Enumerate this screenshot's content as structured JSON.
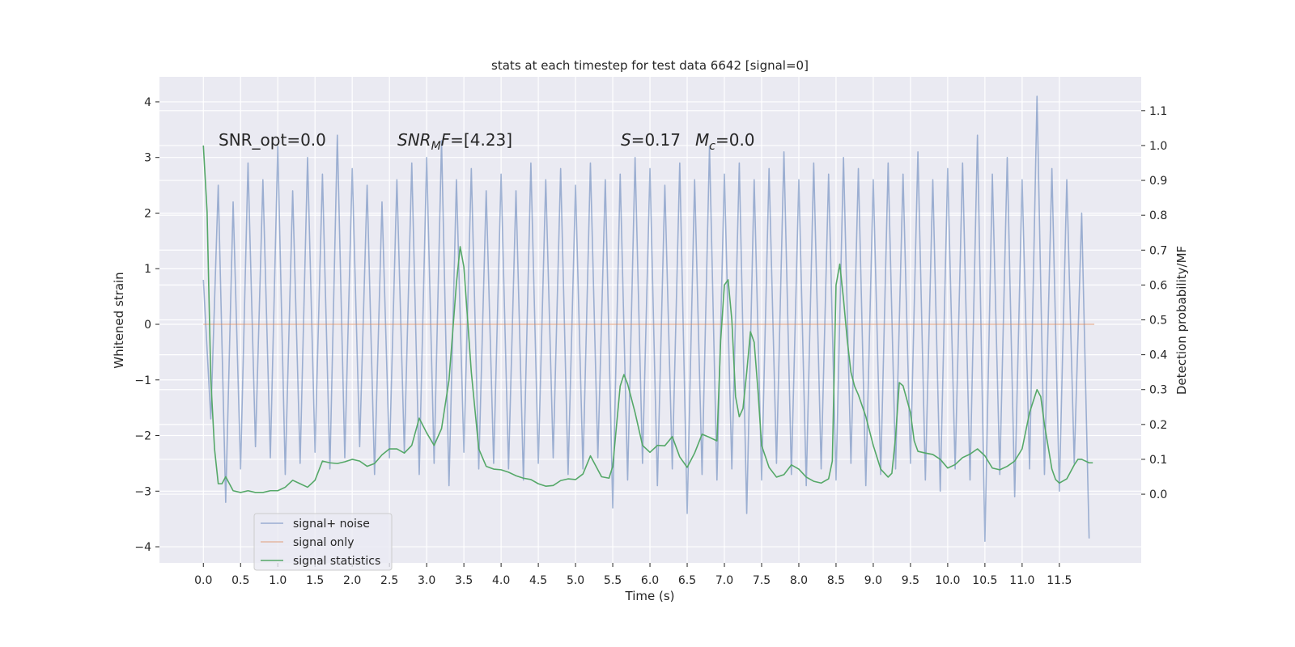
{
  "chart_data": {
    "type": "line",
    "title": "stats at each timestep for test data 6642 [signal=0]",
    "xlabel": "Time (s)",
    "ylabel": "Whitened strain",
    "y2label": "Detection probability/MF",
    "xlim": [
      -0.59,
      12.6
    ],
    "ylim": [
      -4.29,
      4.45
    ],
    "y2lim": [
      -0.197,
      1.197
    ],
    "xticks": [
      {
        "value": 0,
        "label": "0.0"
      },
      0.5,
      {
        "value": 1,
        "label": "1.0"
      },
      1.5,
      {
        "value": 2,
        "label": "2.0"
      },
      2.5,
      {
        "value": 3,
        "label": "3.0"
      },
      3.5,
      {
        "value": 4,
        "label": "4.0"
      },
      4.5,
      {
        "value": 5,
        "label": "5.0"
      },
      5.5,
      {
        "value": 6,
        "label": "6.0"
      },
      6.5,
      {
        "value": 7,
        "label": "7.0"
      },
      7.5,
      {
        "value": 8,
        "label": "8.0"
      },
      8.5,
      {
        "value": 9,
        "label": "9.0"
      },
      9.5,
      {
        "value": 10,
        "label": "10.0"
      },
      10.5,
      {
        "value": 11,
        "label": "11.0"
      },
      11.5
    ],
    "yticks": [
      {
        "value": -4,
        "label": "−4"
      },
      {
        "value": -3,
        "label": "−3"
      },
      {
        "value": -2,
        "label": "−2"
      },
      {
        "value": -1,
        "label": "−1"
      },
      0,
      1,
      2,
      3,
      4
    ],
    "y2ticks": [
      {
        "value": 0,
        "label": "0.0"
      },
      0.1,
      0.2,
      0.3,
      0.4,
      0.5,
      0.6,
      0.7,
      0.8,
      0.9,
      {
        "value": 1,
        "label": "1.0"
      },
      1.1
    ],
    "grid": true,
    "legend_loc": "lower left",
    "annotations": [
      {
        "parts": [
          {
            "text": "SNR_opt=0.0"
          }
        ]
      },
      {
        "parts": [
          {
            "text": "SNR",
            "italic": true
          },
          {
            "text": "M",
            "italic": true,
            "subscript": true
          },
          {
            "text": "F",
            "italic": true
          },
          {
            "text": "=[4.23]"
          }
        ]
      },
      {
        "parts": [
          {
            "text": "S",
            "italic": true
          },
          {
            "text": "=0.17"
          }
        ]
      },
      {
        "parts": [
          {
            "text": "M",
            "italic": true
          },
          {
            "text": "c",
            "italic": true,
            "subscript": true
          },
          {
            "text": "=0.0"
          }
        ]
      }
    ],
    "series": [
      {
        "name": "signal+ noise",
        "color": "#4c72b0",
        "opacity": 0.5,
        "x": [
          0,
          0.1,
          0.2,
          0.3,
          0.4,
          0.5,
          0.6,
          0.7,
          0.8,
          0.9,
          1,
          1.1,
          1.2,
          1.3,
          1.4,
          1.5,
          1.6,
          1.7,
          1.8,
          1.9,
          2,
          2.1,
          2.2,
          2.3,
          2.4,
          2.5,
          2.6,
          2.7,
          2.8,
          2.9,
          3,
          3.1,
          3.2,
          3.3,
          3.4,
          3.5,
          3.6,
          3.7,
          3.8,
          3.9,
          4,
          4.1,
          4.2,
          4.3,
          4.4,
          4.5,
          4.6,
          4.7,
          4.8,
          4.9,
          5,
          5.1,
          5.2,
          5.3,
          5.4,
          5.5,
          5.6,
          5.7,
          5.8,
          5.9,
          6,
          6.1,
          6.2,
          6.3,
          6.4,
          6.5,
          6.6,
          6.7,
          6.8,
          6.9,
          7,
          7.1,
          7.2,
          7.3,
          7.4,
          7.5,
          7.6,
          7.7,
          7.8,
          7.9,
          8,
          8.1,
          8.2,
          8.3,
          8.4,
          8.5,
          8.6,
          8.7,
          8.8,
          8.9,
          9,
          9.1,
          9.2,
          9.3,
          9.4,
          9.5,
          9.6,
          9.7,
          9.8,
          9.9,
          10,
          10.1,
          10.2,
          10.3,
          10.4,
          10.5,
          10.6,
          10.7,
          10.8,
          10.9,
          11,
          11.1,
          11.2,
          11.3,
          11.4,
          11.5,
          11.6,
          11.7,
          11.8,
          11.9
        ],
        "values": [
          0.8,
          -1.7,
          2.5,
          -3.2,
          2.2,
          -2.6,
          2.9,
          -2.2,
          2.6,
          -2.4,
          3.2,
          -2.7,
          2.4,
          -2.5,
          3.0,
          -2.3,
          2.7,
          -2.6,
          3.4,
          -2.4,
          2.8,
          -2.2,
          2.5,
          -2.7,
          2.2,
          -2.4,
          2.6,
          -2.3,
          2.9,
          -2.7,
          3.0,
          -2.5,
          3.3,
          -2.9,
          2.6,
          -2.3,
          2.8,
          -2.6,
          2.4,
          -2.5,
          2.7,
          -2.6,
          2.4,
          -2.8,
          2.9,
          -2.5,
          2.6,
          -2.4,
          2.8,
          -2.7,
          2.5,
          -2.6,
          2.9,
          -2.4,
          2.6,
          -3.3,
          2.7,
          -2.8,
          3.0,
          -2.5,
          2.8,
          -2.9,
          2.5,
          -2.6,
          2.9,
          -3.4,
          2.6,
          -2.7,
          3.2,
          -2.8,
          2.7,
          -2.6,
          2.9,
          -3.4,
          2.6,
          -2.8,
          2.8,
          -2.5,
          3.1,
          -2.7,
          2.6,
          -2.9,
          2.9,
          -2.6,
          2.7,
          -2.8,
          3.0,
          -2.5,
          2.8,
          -2.9,
          2.6,
          -2.7,
          2.9,
          -2.6,
          2.7,
          -2.5,
          3.1,
          -2.8,
          2.6,
          -3.0,
          2.8,
          -2.6,
          2.9,
          -2.8,
          3.4,
          -3.9,
          2.7,
          -2.7,
          3.0,
          -3.1,
          2.6,
          -2.6,
          4.1,
          -2.7,
          2.8,
          -3.0,
          2.6,
          -2.5,
          2.0,
          -3.85
        ]
      },
      {
        "name": "signal only",
        "color": "#dd8452",
        "opacity": 0.5,
        "x": [
          0,
          11.97
        ],
        "values": [
          0,
          0
        ]
      },
      {
        "name": "signal statistics",
        "color": "#55a868",
        "opacity": 1,
        "axis": "y2",
        "x": [
          0,
          0.05,
          0.1,
          0.15,
          0.2,
          0.25,
          0.3,
          0.4,
          0.5,
          0.6,
          0.7,
          0.8,
          0.9,
          1.0,
          1.1,
          1.2,
          1.3,
          1.4,
          1.5,
          1.6,
          1.7,
          1.8,
          1.9,
          2.0,
          2.1,
          2.2,
          2.3,
          2.4,
          2.5,
          2.6,
          2.7,
          2.8,
          2.9,
          3.0,
          3.1,
          3.2,
          3.3,
          3.4,
          3.45,
          3.5,
          3.6,
          3.7,
          3.8,
          3.9,
          4.0,
          4.1,
          4.2,
          4.3,
          4.4,
          4.5,
          4.6,
          4.7,
          4.8,
          4.9,
          5.0,
          5.1,
          5.2,
          5.35,
          5.45,
          5.5,
          5.6,
          5.65,
          5.7,
          5.8,
          5.9,
          6.0,
          6.1,
          6.2,
          6.3,
          6.4,
          6.5,
          6.6,
          6.7,
          6.8,
          6.9,
          6.95,
          7.0,
          7.05,
          7.1,
          7.15,
          7.2,
          7.25,
          7.3,
          7.35,
          7.4,
          7.45,
          7.5,
          7.6,
          7.7,
          7.8,
          7.9,
          8.0,
          8.1,
          8.2,
          8.3,
          8.4,
          8.45,
          8.5,
          8.55,
          8.6,
          8.65,
          8.7,
          8.75,
          8.8,
          8.9,
          9.0,
          9.1,
          9.2,
          9.25,
          9.3,
          9.35,
          9.4,
          9.5,
          9.55,
          9.6,
          9.7,
          9.8,
          9.9,
          10.0,
          10.1,
          10.2,
          10.3,
          10.4,
          10.5,
          10.6,
          10.7,
          10.8,
          10.9,
          11.0,
          11.1,
          11.2,
          11.25,
          11.3,
          11.4,
          11.45,
          11.5,
          11.6,
          11.7,
          11.75,
          11.8,
          11.9,
          11.95
        ],
        "values": [
          1.0,
          0.81,
          0.33,
          0.13,
          0.03,
          0.03,
          0.05,
          0.01,
          0.005,
          0.01,
          0.005,
          0.005,
          0.01,
          0.01,
          0.02,
          0.04,
          0.03,
          0.02,
          0.04,
          0.095,
          0.09,
          0.088,
          0.093,
          0.1,
          0.095,
          0.08,
          0.088,
          0.113,
          0.13,
          0.13,
          0.118,
          0.14,
          0.218,
          0.176,
          0.14,
          0.188,
          0.327,
          0.605,
          0.71,
          0.652,
          0.35,
          0.13,
          0.08,
          0.072,
          0.07,
          0.063,
          0.053,
          0.046,
          0.042,
          0.03,
          0.023,
          0.025,
          0.039,
          0.044,
          0.042,
          0.058,
          0.11,
          0.05,
          0.046,
          0.08,
          0.31,
          0.343,
          0.316,
          0.234,
          0.14,
          0.12,
          0.14,
          0.139,
          0.165,
          0.107,
          0.077,
          0.118,
          0.172,
          0.163,
          0.153,
          0.44,
          0.6,
          0.615,
          0.5,
          0.28,
          0.222,
          0.246,
          0.35,
          0.466,
          0.436,
          0.3,
          0.14,
          0.077,
          0.049,
          0.056,
          0.084,
          0.072,
          0.049,
          0.037,
          0.032,
          0.044,
          0.095,
          0.6,
          0.66,
          0.56,
          0.443,
          0.35,
          0.309,
          0.285,
          0.223,
          0.14,
          0.072,
          0.049,
          0.06,
          0.165,
          0.32,
          0.311,
          0.234,
          0.153,
          0.123,
          0.118,
          0.114,
          0.1,
          0.075,
          0.085,
          0.105,
          0.115,
          0.13,
          0.11,
          0.075,
          0.07,
          0.08,
          0.095,
          0.13,
          0.234,
          0.3,
          0.28,
          0.2,
          0.072,
          0.042,
          0.032,
          0.044,
          0.084,
          0.1,
          0.1,
          0.09,
          0.09
        ]
      }
    ]
  }
}
